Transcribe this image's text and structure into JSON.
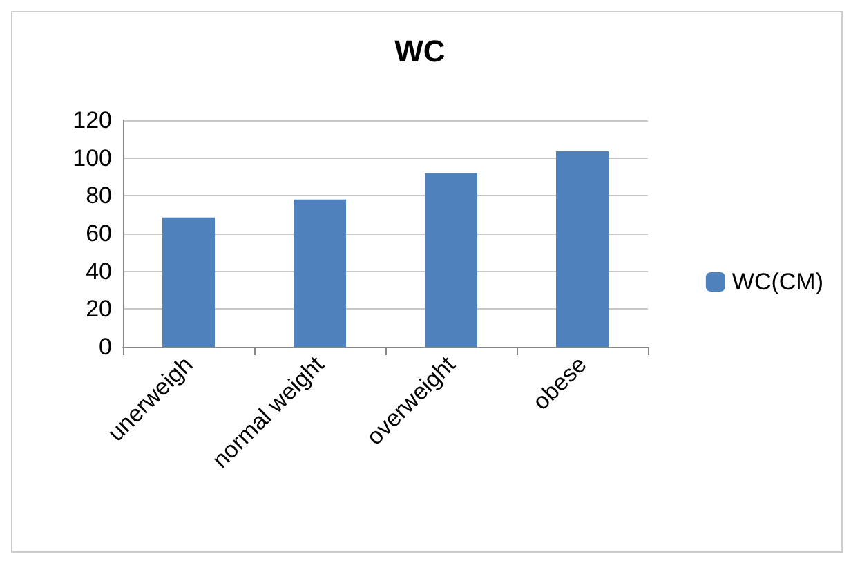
{
  "chart_data": {
    "type": "bar",
    "title": "WC",
    "categories": [
      "unerweigh",
      "normal weight",
      "overweight",
      "obese"
    ],
    "series": [
      {
        "name": "WC(CM)",
        "color": "#4f81bd",
        "values": [
          68.5,
          78,
          92,
          103.5
        ]
      }
    ],
    "ylim": [
      0,
      120
    ],
    "yticks": [
      0,
      20,
      40,
      60,
      80,
      100,
      120
    ],
    "grid": "y",
    "legend": "right"
  }
}
